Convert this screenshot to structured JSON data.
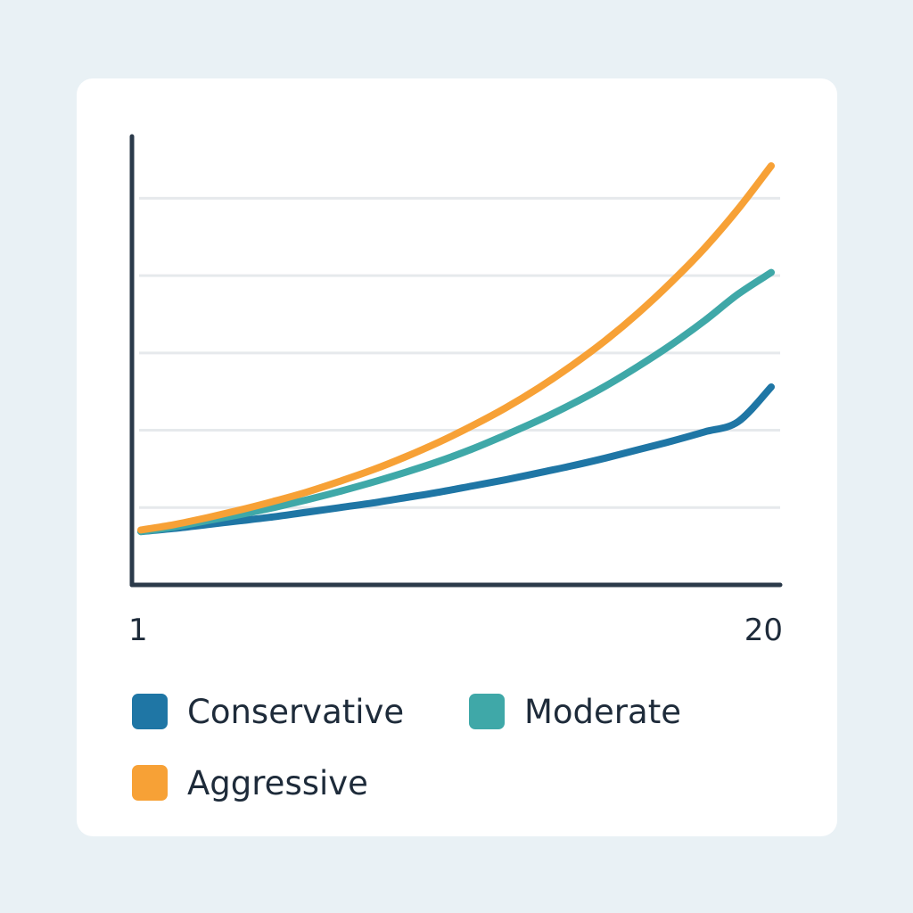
{
  "chart_data": {
    "type": "line",
    "title": "",
    "xlabel": "",
    "ylabel": "",
    "x": [
      1,
      2,
      3,
      4,
      5,
      6,
      7,
      8,
      9,
      10,
      11,
      12,
      13,
      14,
      15,
      16,
      17,
      18,
      19,
      20
    ],
    "x_tick_labels": [
      "1",
      "20"
    ],
    "xlim": [
      1,
      20
    ],
    "ylim": [
      0,
      5.8
    ],
    "grid": true,
    "grid_axis": "y",
    "y_gridlines": [
      1,
      2,
      3,
      4,
      5
    ],
    "legend_position": "bottom",
    "series": [
      {
        "name": "Conservative",
        "color": "#1f76a5",
        "values": [
          0.69,
          0.73,
          0.78,
          0.83,
          0.88,
          0.94,
          1.0,
          1.06,
          1.13,
          1.2,
          1.28,
          1.36,
          1.45,
          1.54,
          1.64,
          1.75,
          1.86,
          1.98,
          2.11,
          2.56
        ]
      },
      {
        "name": "Moderate",
        "color": "#3fa8a8",
        "values": [
          0.69,
          0.75,
          0.83,
          0.91,
          1.0,
          1.1,
          1.21,
          1.33,
          1.46,
          1.6,
          1.76,
          1.94,
          2.13,
          2.34,
          2.57,
          2.83,
          3.11,
          3.42,
          3.76,
          4.04
        ]
      },
      {
        "name": "Aggressive",
        "color": "#f7a136",
        "values": [
          0.71,
          0.78,
          0.87,
          0.97,
          1.08,
          1.2,
          1.34,
          1.49,
          1.66,
          1.85,
          2.06,
          2.29,
          2.55,
          2.84,
          3.16,
          3.52,
          3.92,
          4.36,
          4.86,
          5.42
        ]
      }
    ]
  },
  "colors": {
    "axis": "#2b3a4a",
    "gridline": "#e6e9ec",
    "text": "#1e2b3a",
    "card": "#ffffff",
    "background": "#e9f1f5"
  }
}
